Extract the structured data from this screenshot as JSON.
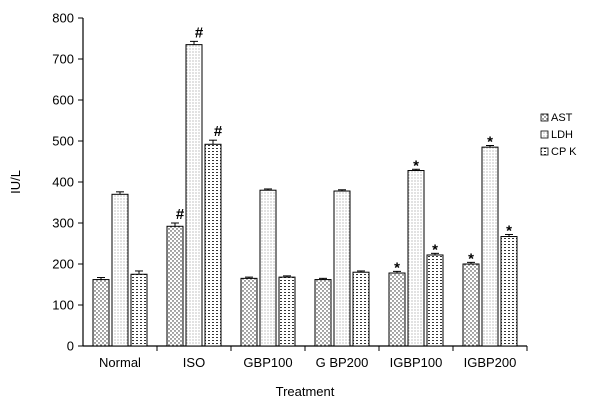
{
  "chart_data": {
    "type": "bar",
    "title": "",
    "xlabel": "Treatment",
    "ylabel": "IU/L",
    "ylim": [
      0,
      800
    ],
    "yticks": [
      0,
      100,
      200,
      300,
      400,
      500,
      600,
      700,
      800
    ],
    "grid": false,
    "legend_position": "right",
    "categories": [
      "Normal",
      "ISO",
      "GBP100",
      "G BP200",
      "IGBP100",
      "IGBP200"
    ],
    "series": [
      {
        "name": "AST",
        "values": [
          162,
          292,
          165,
          162,
          178,
          200
        ],
        "errors": [
          5,
          8,
          3,
          3,
          4,
          4
        ],
        "annotations": [
          "",
          "#",
          "",
          "",
          "*",
          "*"
        ],
        "color": "#ffffff"
      },
      {
        "name": "LDH",
        "values": [
          370,
          735,
          380,
          378,
          428,
          485
        ],
        "errors": [
          6,
          8,
          3,
          3,
          3,
          4
        ],
        "annotations": [
          "",
          "#",
          "",
          "",
          "*",
          "*"
        ],
        "color": "#ffffff"
      },
      {
        "name": "CP K",
        "values": [
          175,
          492,
          168,
          180,
          222,
          267
        ],
        "errors": [
          8,
          10,
          3,
          3,
          4,
          5
        ],
        "annotations": [
          "",
          "#",
          "",
          "",
          "*",
          "*"
        ],
        "color": "#ffffff"
      }
    ]
  }
}
